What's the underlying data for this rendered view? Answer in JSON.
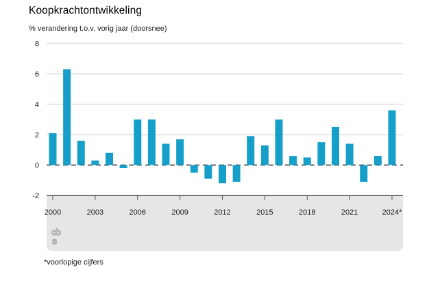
{
  "chart_data": {
    "type": "bar",
    "title": "Koopkrachtontwikkeling",
    "subtitle": "% verandering t.o.v. vorig jaar (doorsnee)",
    "footnote": "*voorlopige cijfers",
    "categories": [
      "2000",
      "2001",
      "2002",
      "2003",
      "2004",
      "2005",
      "2006",
      "2007",
      "2008",
      "2009",
      "2010",
      "2011",
      "2012",
      "2013",
      "2014",
      "2015",
      "2016",
      "2017",
      "2018",
      "2019",
      "2020",
      "2021",
      "2022",
      "2023",
      "2024"
    ],
    "values": [
      2.1,
      6.3,
      1.6,
      0.3,
      0.8,
      -0.2,
      3.0,
      3.0,
      1.4,
      1.7,
      -0.5,
      -0.9,
      -1.2,
      -1.1,
      1.9,
      1.3,
      3.0,
      0.6,
      0.5,
      1.5,
      2.5,
      1.4,
      -1.1,
      0.6,
      3.6
    ],
    "x_ticks": [
      {
        "year": 2000,
        "label": "2000"
      },
      {
        "year": 2003,
        "label": "2003"
      },
      {
        "year": 2006,
        "label": "2006"
      },
      {
        "year": 2009,
        "label": "2009"
      },
      {
        "year": 2012,
        "label": "2012"
      },
      {
        "year": 2015,
        "label": "2015"
      },
      {
        "year": 2018,
        "label": "2018"
      },
      {
        "year": 2021,
        "label": "2021"
      },
      {
        "year": 2024,
        "label": "2024*"
      }
    ],
    "y_ticks": [
      8,
      6,
      4,
      2,
      0,
      -2
    ],
    "ylim": [
      -2,
      8
    ],
    "grid": true,
    "legend": "none",
    "zero_line_style": "dashed"
  },
  "colors": {
    "bar": "#16a0c9",
    "gridline": "#e0e0e0",
    "zero_line": "#2e2e2e",
    "axis_line": "#4d4d4d",
    "panel": "#e6e6e6",
    "tick_text": "#1a1a1a",
    "logo": "#a0a0a0"
  },
  "logo": {
    "line1": "cb",
    "line2": "s"
  }
}
